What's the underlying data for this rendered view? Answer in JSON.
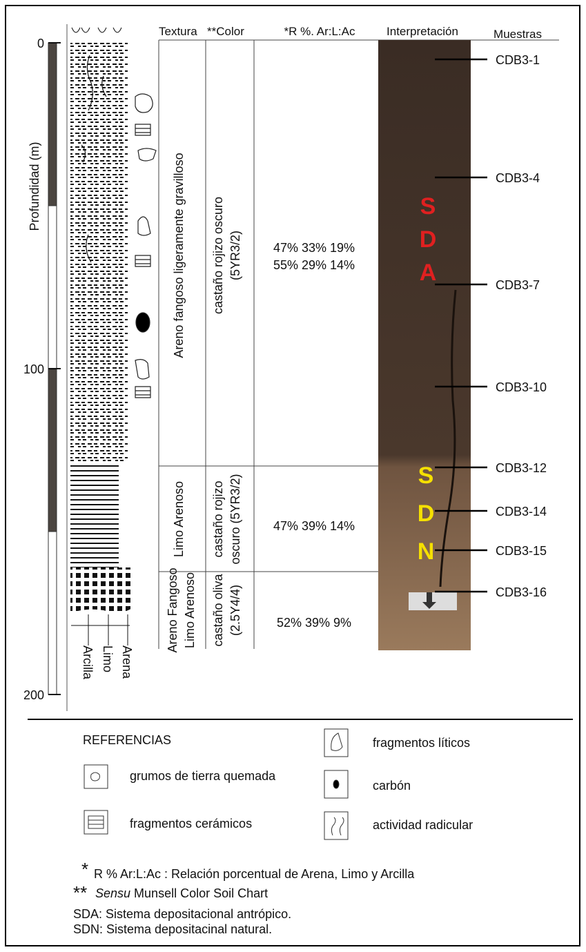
{
  "depth_axis": {
    "label": "Profundidad (m)",
    "ticks": [
      0,
      100,
      200
    ]
  },
  "grain_size_labels": [
    "Arcilla",
    "Limo",
    "Arena"
  ],
  "header": {
    "texture": "Textura",
    "color": "**Color",
    "ratio": "*R %. Ar:L:Ac",
    "interpretation": "Interpretación",
    "samples": "Muestras"
  },
  "units": [
    {
      "texture": [
        "Areno fangoso ligeramente gravilloso"
      ],
      "color": [
        "castaño rojizo oscuro",
        "(5YR3/2)"
      ],
      "ratios": [
        "47% 33% 19%",
        "55% 29% 14%"
      ]
    },
    {
      "texture": [
        "Limo Arenoso"
      ],
      "color": [
        "castaño rojizo",
        "oscuro (5YR3/2)"
      ],
      "ratios": [
        "47% 39% 14%"
      ]
    },
    {
      "texture": [
        "Areno Fangoso",
        "Limo Arenoso"
      ],
      "color": [
        "castaño oliva",
        "(2.5Y4/4)"
      ],
      "ratios": [
        "52% 39% 9%"
      ]
    }
  ],
  "interpretation": [
    "SDA",
    "SDN"
  ],
  "samples": [
    "CDB3-1",
    "CDB3-4",
    "CDB3-7",
    "CDB3-10",
    "CDB3-12",
    "CDB3-14",
    "CDB3-15",
    "CDB3-16"
  ],
  "references": {
    "title": "REFERENCIAS",
    "items": [
      "grumos de tierra quemada",
      "fragmentos cerámicos",
      "fragmentos líticos",
      "carbón",
      "actividad radicular"
    ]
  },
  "notes": [
    {
      "mark": "*",
      "text": "R % Ar:L:Ac : Relación porcentual de Arena, Limo y Arcilla"
    },
    {
      "mark": "**",
      "emphasis": "Sensu",
      "text": " Munsell  Color Soil Chart"
    },
    {
      "text": "SDA: Sistema depositacional antrópico."
    },
    {
      "text": "SDN: Sistema depositacinal natural."
    }
  ]
}
